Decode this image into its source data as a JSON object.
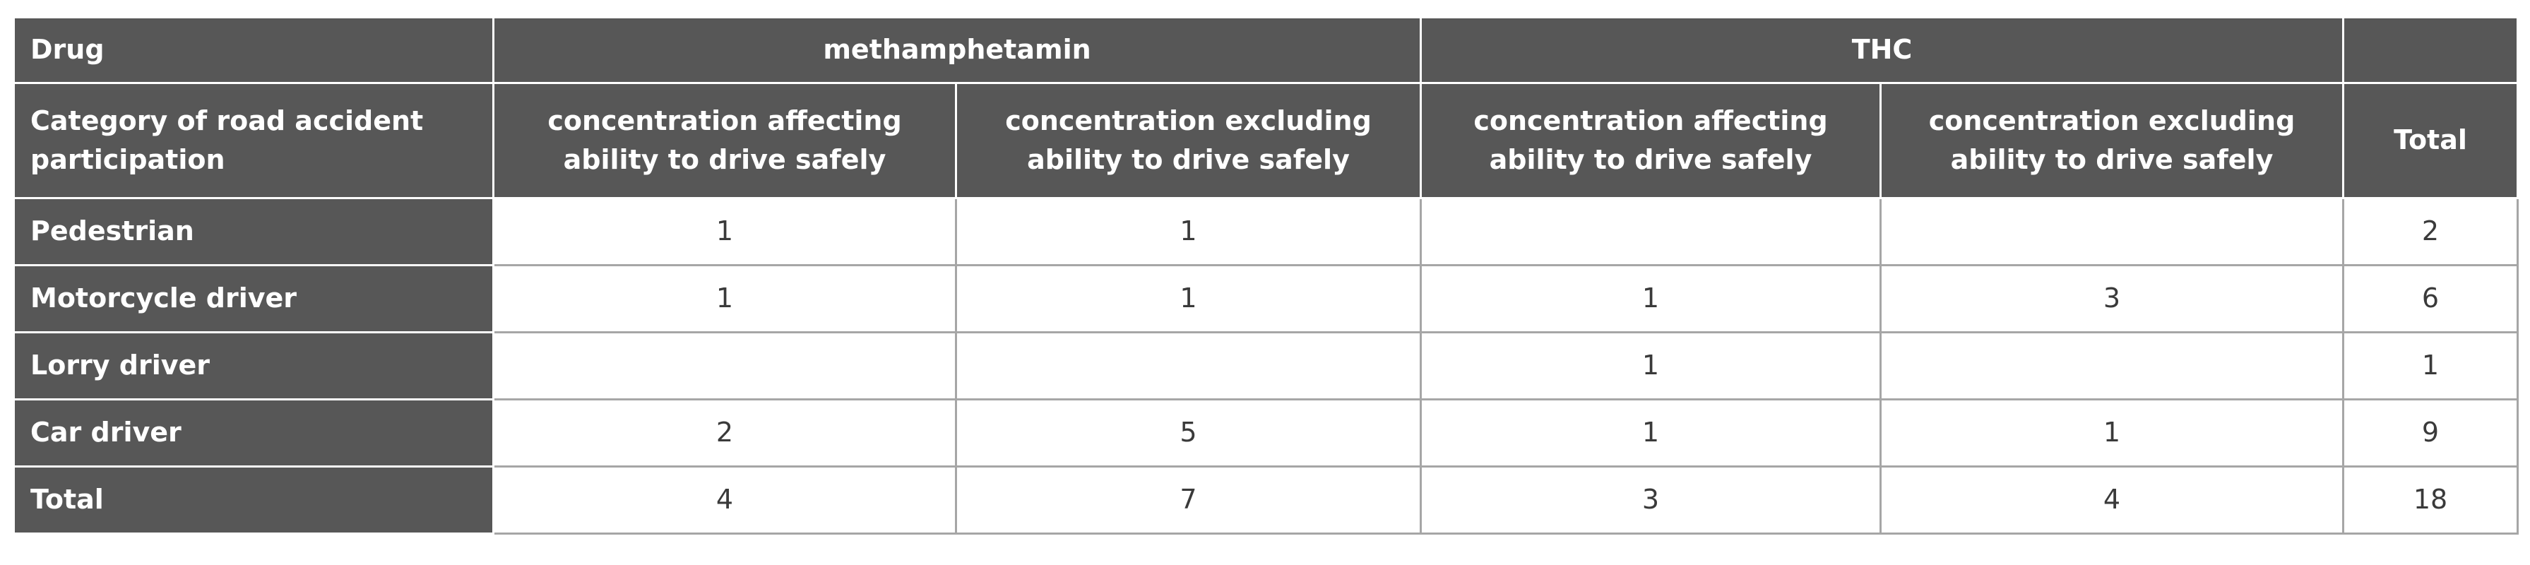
{
  "table": {
    "header": {
      "drug": "Drug",
      "groups": [
        "methamphetamin",
        "THC"
      ],
      "category": "Category of road accident participation",
      "subheaders": [
        "concentration affecting ability to drive safely",
        "concentration excluding ability to drive safely",
        "concentration affecting ability to drive safely",
        "concentration excluding ability to drive safely"
      ],
      "total": "Total"
    },
    "rows": [
      [
        "Pedestrian",
        1,
        1,
        null,
        null,
        2
      ],
      [
        "Motorcycle driver",
        1,
        1,
        1,
        3,
        6
      ],
      [
        "Lorry driver",
        null,
        null,
        1,
        null,
        1
      ],
      [
        "Car driver",
        2,
        5,
        1,
        1,
        9
      ],
      [
        "Total",
        4,
        7,
        3,
        4,
        18
      ]
    ]
  }
}
